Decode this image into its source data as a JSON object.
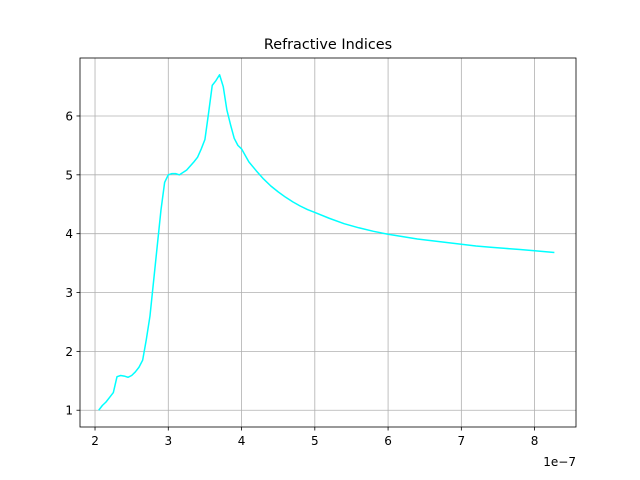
{
  "chart_data": {
    "type": "line",
    "title": "Refractive Indices",
    "xlabel": "",
    "ylabel": "",
    "x_offset_label": "1e−7",
    "x_scale": 1e-07,
    "xlim": [
      1.795,
      8.565
    ],
    "ylim": [
      0.715,
      6.985
    ],
    "x_ticks": [
      2,
      3,
      4,
      5,
      6,
      7,
      8
    ],
    "y_ticks": [
      1,
      2,
      3,
      4,
      5,
      6
    ],
    "grid": true,
    "legend": "none",
    "series": [
      {
        "color": "#00ffff",
        "x": [
          2.05,
          2.1,
          2.15,
          2.2,
          2.25,
          2.3,
          2.35,
          2.4,
          2.45,
          2.5,
          2.55,
          2.6,
          2.65,
          2.7,
          2.75,
          2.8,
          2.85,
          2.9,
          2.95,
          3.0,
          3.05,
          3.1,
          3.15,
          3.2,
          3.25,
          3.3,
          3.35,
          3.4,
          3.45,
          3.5,
          3.55,
          3.6,
          3.65,
          3.7,
          3.75,
          3.8,
          3.85,
          3.9,
          3.95,
          4.0,
          4.1,
          4.2,
          4.3,
          4.4,
          4.5,
          4.6,
          4.7,
          4.8,
          4.9,
          5.0,
          5.2,
          5.4,
          5.6,
          5.8,
          6.0,
          6.2,
          6.4,
          6.6,
          6.8,
          7.0,
          7.2,
          7.4,
          7.6,
          7.8,
          8.0,
          8.27
        ],
        "y": [
          1.0,
          1.08,
          1.14,
          1.22,
          1.3,
          1.57,
          1.59,
          1.58,
          1.56,
          1.59,
          1.65,
          1.73,
          1.85,
          2.2,
          2.6,
          3.2,
          3.8,
          4.4,
          4.87,
          5.0,
          5.02,
          5.02,
          5.0,
          5.04,
          5.08,
          5.15,
          5.22,
          5.3,
          5.44,
          5.6,
          6.05,
          6.52,
          6.6,
          6.7,
          6.5,
          6.1,
          5.85,
          5.62,
          5.5,
          5.44,
          5.22,
          5.07,
          4.93,
          4.81,
          4.71,
          4.62,
          4.54,
          4.47,
          4.41,
          4.36,
          4.26,
          4.17,
          4.1,
          4.04,
          3.99,
          3.95,
          3.91,
          3.88,
          3.85,
          3.82,
          3.79,
          3.77,
          3.75,
          3.73,
          3.71,
          3.68
        ]
      }
    ]
  }
}
